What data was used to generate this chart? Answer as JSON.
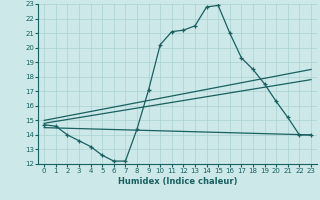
{
  "xlabel": "Humidex (Indice chaleur)",
  "bg_color": "#cce8e8",
  "grid_color": "#aad0d0",
  "line_color": "#1a6060",
  "xlim": [
    -0.5,
    23.5
  ],
  "ylim": [
    12,
    23
  ],
  "xticks": [
    0,
    1,
    2,
    3,
    4,
    5,
    6,
    7,
    8,
    9,
    10,
    11,
    12,
    13,
    14,
    15,
    16,
    17,
    18,
    19,
    20,
    21,
    22,
    23
  ],
  "yticks": [
    12,
    13,
    14,
    15,
    16,
    17,
    18,
    19,
    20,
    21,
    22,
    23
  ],
  "line1_x": [
    0,
    1,
    2,
    3,
    4,
    5,
    6,
    7,
    8,
    9,
    10,
    11,
    12,
    13,
    14,
    15,
    16,
    17,
    18,
    19,
    20,
    21,
    22,
    23
  ],
  "line1_y": [
    14.7,
    14.6,
    14.0,
    13.6,
    13.2,
    12.6,
    12.2,
    12.2,
    14.4,
    17.1,
    20.2,
    21.1,
    21.2,
    21.5,
    22.8,
    22.9,
    21.0,
    19.3,
    18.5,
    17.5,
    16.3,
    15.2,
    14.0,
    14.0
  ],
  "line2_x": [
    0,
    23
  ],
  "line2_y": [
    15.0,
    18.5
  ],
  "line3_x": [
    0,
    23
  ],
  "line3_y": [
    14.8,
    17.8
  ],
  "line4_x": [
    0,
    23
  ],
  "line4_y": [
    14.5,
    14.0
  ],
  "xlabel_fontsize": 6,
  "tick_fontsize": 5
}
